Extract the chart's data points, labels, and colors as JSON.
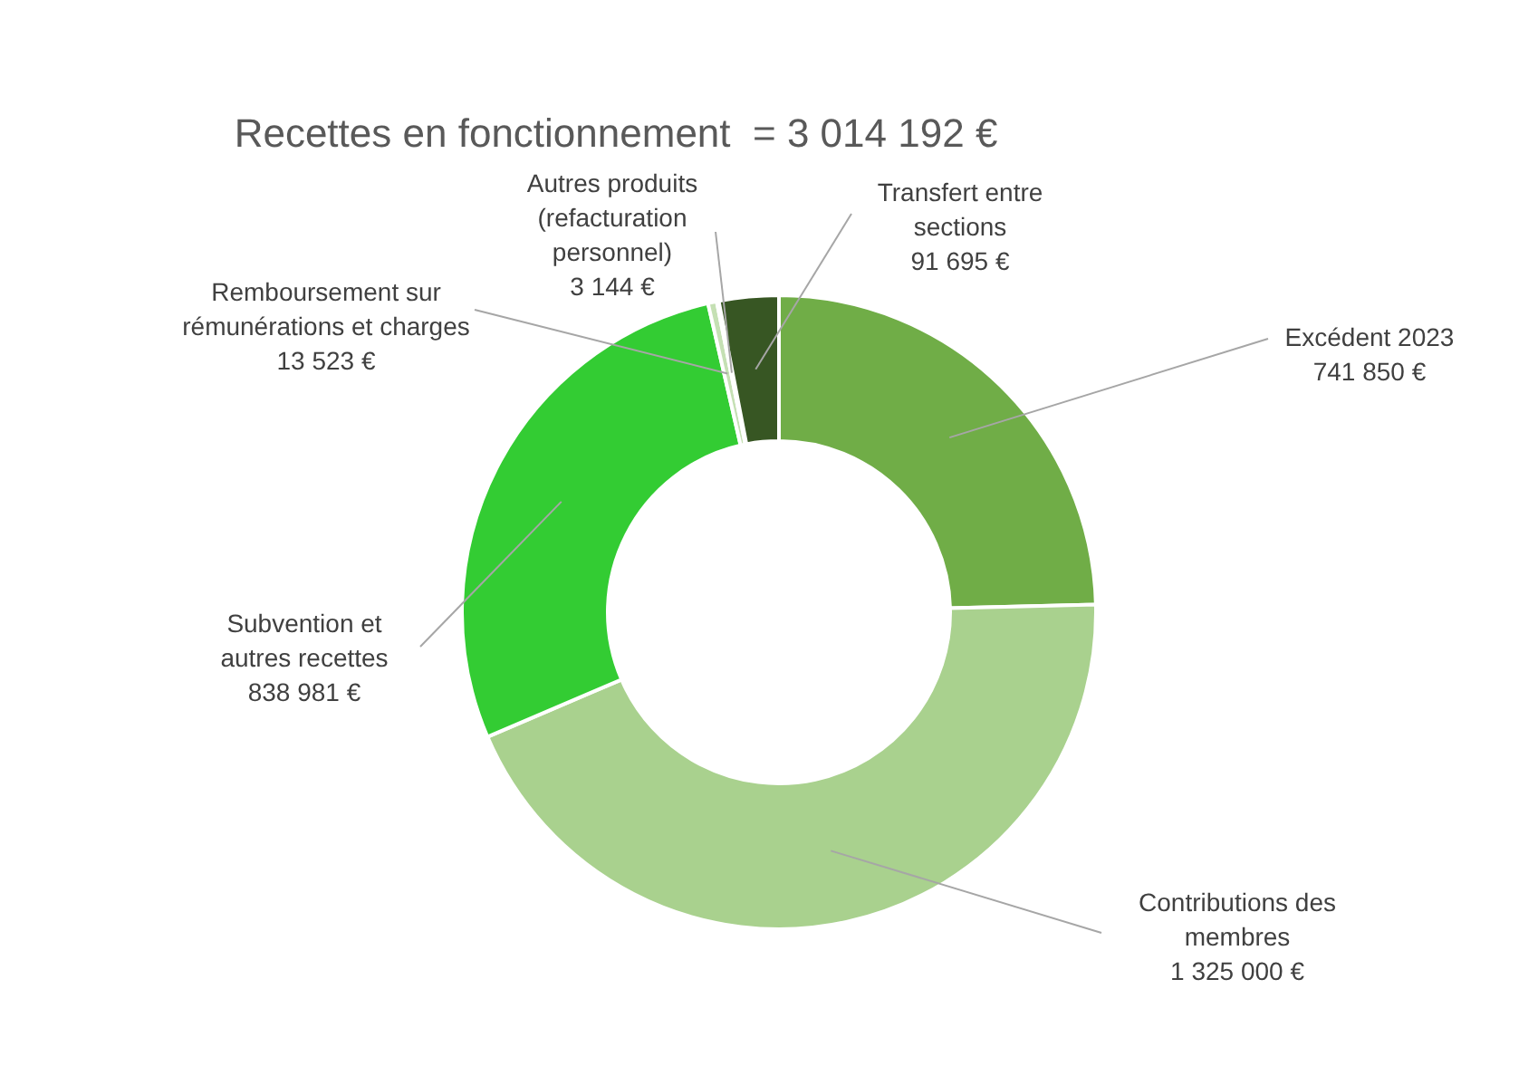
{
  "chart_data": {
    "type": "donut",
    "title": "Recettes en fonctionnement  = 3 014 192 €",
    "categories": [
      "Excédent 2023",
      "Contributions des membres",
      "Subvention et autres recettes",
      "Remboursement sur rémunérations et charges",
      "Autres produits (refacturation personnel)",
      "Transfert entre sections"
    ],
    "values": [
      741850,
      1325000,
      838981,
      13523,
      3144,
      91695
    ],
    "colors": [
      "#70ad47",
      "#a9d18e",
      "#33cc33",
      "#c5e0b4",
      "#548235",
      "#375623"
    ],
    "value_labels": [
      "741 850 €",
      "1 325 000 €",
      "838 981 €",
      "13 523 €",
      "3 144 €",
      "91 695 €"
    ],
    "legend": false
  }
}
